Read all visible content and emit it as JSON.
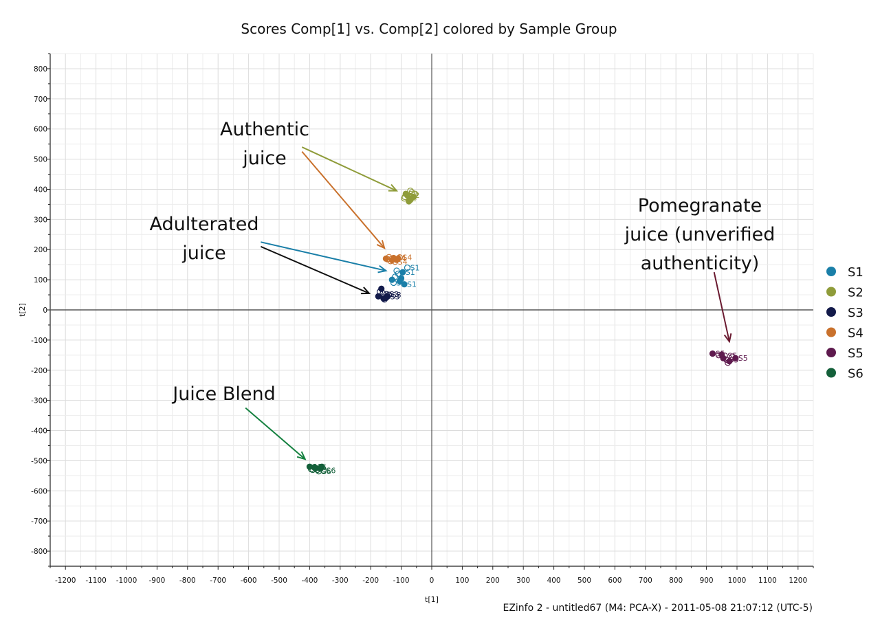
{
  "chart_data": {
    "type": "scatter",
    "title": "Scores Comp[1] vs. Comp[2] colored by Sample Group",
    "xlabel": "t[1]",
    "ylabel": "t[2]",
    "xlim": [
      -1250,
      1250
    ],
    "ylim": [
      -850,
      850
    ],
    "xticks": [
      -1200,
      -1100,
      -1000,
      -900,
      -800,
      -700,
      -600,
      -500,
      -400,
      -300,
      -200,
      -100,
      0,
      100,
      200,
      300,
      400,
      500,
      600,
      700,
      800,
      900,
      1000,
      1100,
      1200
    ],
    "yticks": [
      800,
      700,
      600,
      500,
      400,
      300,
      200,
      100,
      0,
      -100,
      -200,
      -300,
      -400,
      -500,
      -600,
      -700,
      -800
    ],
    "grid": true,
    "legend_position": "right",
    "footer": "EZinfo 2 - untitled67 (M4: PCA-X) - 2011-05-08 21:07:12 (UTC-5)",
    "series": [
      {
        "name": "S1",
        "color": "#1a7fa8",
        "point_label": "S1",
        "x": [
          -95,
          -120,
          -105,
          -80,
          -130,
          -110,
          -90,
          -115,
          -100,
          -125
        ],
        "y": [
          125,
          110,
          95,
          140,
          100,
          120,
          85,
          130,
          105,
          90
        ]
      },
      {
        "name": "S2",
        "color": "#8f9c3a",
        "point_label": "S2",
        "x": [
          -85,
          -70,
          -60,
          -90,
          -75,
          -65,
          -80,
          -55,
          -70,
          -88
        ],
        "y": [
          385,
          395,
          375,
          370,
          360,
          390,
          380,
          385,
          365,
          375
        ]
      },
      {
        "name": "S3",
        "color": "#131a4a",
        "point_label": "S3",
        "x": [
          -175,
          -160,
          -150,
          -140,
          -165,
          -155,
          -145,
          -170,
          -158,
          -148
        ],
        "y": [
          45,
          55,
          40,
          50,
          70,
          35,
          45,
          60,
          38,
          52
        ]
      },
      {
        "name": "S4",
        "color": "#c9712c",
        "point_label": "S4",
        "x": [
          -150,
          -140,
          -130,
          -120,
          -110,
          -145,
          -125,
          -135,
          -115,
          -105
        ],
        "y": [
          170,
          175,
          165,
          160,
          170,
          168,
          172,
          162,
          166,
          174
        ]
      },
      {
        "name": "S5",
        "color": "#5e1a4e",
        "point_label": "S5",
        "x": [
          920,
          940,
          955,
          965,
          975,
          985,
          995,
          970,
          950,
          960
        ],
        "y": [
          -145,
          -150,
          -160,
          -165,
          -170,
          -155,
          -160,
          -175,
          -148,
          -152
        ]
      },
      {
        "name": "S6",
        "color": "#14603a",
        "point_label": "S6",
        "x": [
          -400,
          -390,
          -380,
          -370,
          -360,
          -395,
          -385,
          -375,
          -365,
          -355
        ],
        "y": [
          -520,
          -530,
          -525,
          -535,
          -520,
          -528,
          -522,
          -530,
          -526,
          -532
        ]
      }
    ],
    "annotations": [
      {
        "lines": [
          "Authentic",
          "juice"
        ],
        "arrows": [
          {
            "color": "#8f9c3a",
            "from": [
              -425,
              540
            ],
            "to": [
              -115,
              395
            ]
          },
          {
            "color": "#c9712c",
            "from": [
              -425,
              525
            ],
            "to": [
              -155,
              205
            ]
          }
        ]
      },
      {
        "lines": [
          "Adulterated",
          "juice"
        ],
        "arrows": [
          {
            "color": "#1a7fa8",
            "from": [
              -560,
              225
            ],
            "to": [
              -150,
              130
            ]
          },
          {
            "color": "#111111",
            "from": [
              -560,
              210
            ],
            "to": [
              -205,
              55
            ]
          }
        ]
      },
      {
        "lines": [
          "Juice Blend"
        ],
        "arrows": [
          {
            "color": "#14803f",
            "from": [
              -610,
              -325
            ],
            "to": [
              -415,
              -495
            ]
          }
        ]
      },
      {
        "lines": [
          "Pomegranate",
          "juice (unverified",
          "authenticity)"
        ],
        "arrows": [
          {
            "color": "#6a1a30",
            "from": [
              925,
              125
            ],
            "to": [
              975,
              -105
            ]
          }
        ]
      }
    ]
  }
}
